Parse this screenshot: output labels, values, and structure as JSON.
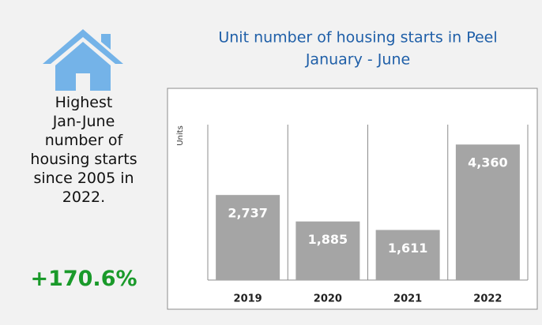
{
  "sidebar": {
    "lines": [
      "Highest",
      "Jan-June",
      "number of",
      "housing starts",
      "since 2005 in",
      "2022."
    ],
    "highlight": "+170.6%"
  },
  "chart_data": {
    "type": "bar",
    "title": "Unit number of housing starts in Peel",
    "subtitle": "January - June",
    "y_label": "Units",
    "categories": [
      "2019",
      "2020",
      "2021",
      "2022"
    ],
    "values": [
      2737,
      1885,
      1611,
      4360
    ],
    "value_labels": [
      "2,737",
      "1,885",
      "1,611",
      "4,360"
    ],
    "color": "#a5a5a5",
    "ylim": [
      0,
      5000
    ]
  }
}
